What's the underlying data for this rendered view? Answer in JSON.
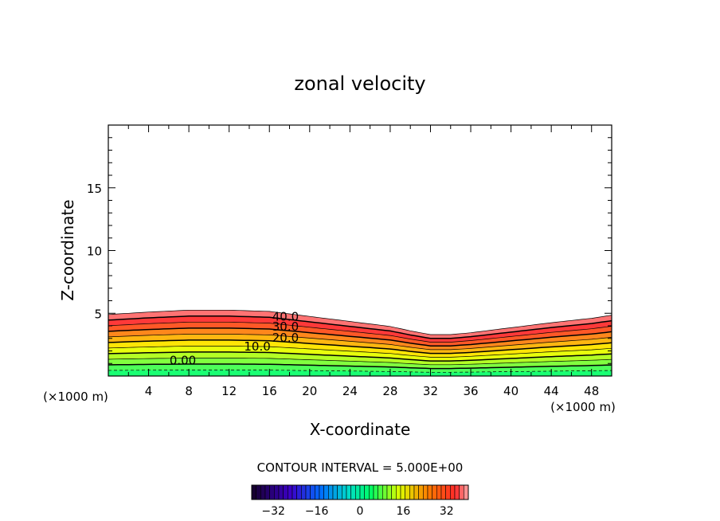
{
  "chart_data": {
    "type": "contour",
    "title": "zonal velocity",
    "xlabel": "X-coordinate",
    "ylabel": "Z-coordinate",
    "x_unit_left": "(×1000 m)",
    "x_unit_right": "(×1000 m)",
    "xlim": [
      0,
      50
    ],
    "ylim": [
      0,
      20
    ],
    "x_ticks": [
      4,
      8,
      12,
      16,
      20,
      24,
      28,
      32,
      36,
      40,
      44,
      48
    ],
    "x_tick_labels": [
      "4",
      "8",
      "12",
      "16",
      "20",
      "24",
      "28",
      "32",
      "36",
      "40",
      "44",
      "48"
    ],
    "y_ticks": [
      5,
      10,
      15
    ],
    "y_tick_labels": [
      "5",
      "10",
      "15"
    ],
    "terrain": {
      "x": [
        0,
        4,
        8,
        12,
        16,
        20,
        24,
        28,
        30,
        32,
        34,
        36,
        40,
        44,
        48,
        50
      ],
      "z": [
        4.9,
        5.1,
        5.25,
        5.25,
        5.15,
        4.75,
        4.35,
        3.95,
        3.6,
        3.3,
        3.3,
        3.45,
        3.85,
        4.25,
        4.6,
        4.85
      ]
    },
    "contour_interval_label": "CONTOUR INTERVAL = 5.000E+00",
    "contour_interval": 5,
    "contour_labels": [
      {
        "text": "40.0",
        "x": 17.6,
        "z": 4.8
      },
      {
        "text": "30.0",
        "x": 17.6,
        "z": 4.0
      },
      {
        "text": "20.0",
        "x": 17.6,
        "z": 3.1
      },
      {
        "text": "10.0",
        "x": 14.8,
        "z": 2.4
      },
      {
        "text": "0.00",
        "x": 7.4,
        "z": 1.3
      }
    ],
    "colorbar": {
      "min": -40,
      "max": 40,
      "tick_values": [
        -32,
        -16,
        0,
        16,
        32
      ],
      "tick_labels": [
        "−32",
        "−16",
        "0",
        "16",
        "32"
      ]
    },
    "colors": {
      "low": "#00ff80",
      "mid": "#ffff00",
      "high": "#ff3030",
      "top": "#ff9090"
    }
  }
}
